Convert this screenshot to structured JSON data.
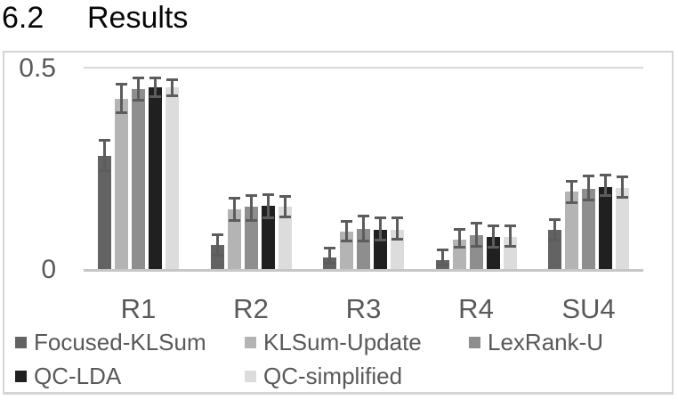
{
  "heading": {
    "number": "6.2",
    "text": "Results"
  },
  "colors": {
    "frame_border": "#d5d5d5",
    "gridline": "#d9d9d9",
    "axis_line": "#c6c6c6",
    "chart_text": "#595959",
    "error_bar": "#5c5c5c",
    "heading_text": "#070707"
  },
  "chart_data": {
    "type": "bar",
    "title": "",
    "xlabel": "",
    "ylabel": "",
    "categories": [
      "R1",
      "R2",
      "R3",
      "R4",
      "SU4"
    ],
    "ytick_labels": [
      "0.5",
      "0"
    ],
    "ylim": [
      0,
      0.5
    ],
    "grid": "single horizontal gridline at 0.5 plus baseline at 0",
    "legend_position": "bottom-left inside frame, two rows",
    "error_bars": true,
    "error_bar_color": "#5c5c5c",
    "series": [
      {
        "name": "Focused-KLSum",
        "color": "#636363",
        "values": [
          0.283,
          0.06,
          0.029,
          0.022,
          0.098
        ],
        "err_up": [
          0.04,
          0.027,
          0.024,
          0.027,
          0.027
        ],
        "err_down": [
          0.038,
          0.027,
          0.016,
          0.013,
          0.027
        ]
      },
      {
        "name": "KLSum-Update",
        "color": "#b4b4b4",
        "values": [
          0.425,
          0.149,
          0.094,
          0.073,
          0.194
        ],
        "err_up": [
          0.038,
          0.029,
          0.026,
          0.027,
          0.026
        ],
        "err_down": [
          0.037,
          0.029,
          0.025,
          0.02,
          0.029
        ]
      },
      {
        "name": "LexRank-U",
        "color": "#8e8e8e",
        "values": [
          0.45,
          0.155,
          0.1,
          0.085,
          0.2
        ],
        "err_up": [
          0.027,
          0.03,
          0.034,
          0.031,
          0.034
        ],
        "err_down": [
          0.031,
          0.035,
          0.031,
          0.029,
          0.029
        ]
      },
      {
        "name": "QC-LDA",
        "color": "#202020",
        "values": [
          0.454,
          0.158,
          0.098,
          0.08,
          0.205
        ],
        "err_up": [
          0.023,
          0.029,
          0.031,
          0.029,
          0.031
        ],
        "err_down": [
          0.024,
          0.031,
          0.027,
          0.027,
          0.022
        ]
      },
      {
        "name": "QC-simplified",
        "color": "#dcdcdc",
        "values": [
          0.454,
          0.156,
          0.098,
          0.08,
          0.203
        ],
        "err_up": [
          0.02,
          0.027,
          0.031,
          0.029,
          0.029
        ],
        "err_down": [
          0.022,
          0.027,
          0.025,
          0.024,
          0.025
        ]
      }
    ]
  }
}
